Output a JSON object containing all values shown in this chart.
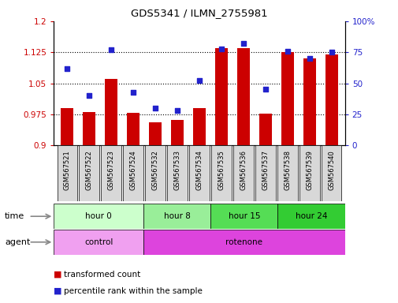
{
  "title": "GDS5341 / ILMN_2755981",
  "samples": [
    "GSM567521",
    "GSM567522",
    "GSM567523",
    "GSM567524",
    "GSM567532",
    "GSM567533",
    "GSM567534",
    "GSM567535",
    "GSM567536",
    "GSM567537",
    "GSM567538",
    "GSM567539",
    "GSM567540"
  ],
  "transformed_count": [
    0.99,
    0.98,
    1.06,
    0.978,
    0.955,
    0.962,
    0.99,
    1.135,
    1.135,
    0.977,
    1.126,
    1.11,
    1.12
  ],
  "percentile_rank": [
    62,
    40,
    77,
    43,
    30,
    28,
    52,
    78,
    82,
    45,
    76,
    70,
    75
  ],
  "ylim_left": [
    0.9,
    1.2
  ],
  "ylim_right": [
    0,
    100
  ],
  "yticks_left": [
    0.9,
    0.975,
    1.05,
    1.125,
    1.2
  ],
  "yticks_right": [
    0,
    25,
    50,
    75,
    100
  ],
  "ytick_labels_left": [
    "0.9",
    "0.975",
    "1.05",
    "1.125",
    "1.2"
  ],
  "ytick_labels_right": [
    "0",
    "25",
    "50",
    "75",
    "100%"
  ],
  "hlines": [
    0.975,
    1.05,
    1.125
  ],
  "bar_color": "#cc0000",
  "dot_color": "#2222cc",
  "time_groups": [
    {
      "label": "hour 0",
      "start": 0,
      "end": 4,
      "color": "#ccffcc"
    },
    {
      "label": "hour 8",
      "start": 4,
      "end": 7,
      "color": "#99ee99"
    },
    {
      "label": "hour 15",
      "start": 7,
      "end": 10,
      "color": "#55dd55"
    },
    {
      "label": "hour 24",
      "start": 10,
      "end": 13,
      "color": "#33cc33"
    }
  ],
  "agent_groups": [
    {
      "label": "control",
      "start": 0,
      "end": 4,
      "color": "#f0a0f0"
    },
    {
      "label": "rotenone",
      "start": 4,
      "end": 13,
      "color": "#dd44dd"
    }
  ],
  "legend_bar_label": "transformed count",
  "legend_dot_label": "percentile rank within the sample",
  "time_label": "time",
  "agent_label": "agent",
  "bg_color": "#ffffff",
  "plot_bg_color": "#ffffff",
  "tick_color_left": "#cc0000",
  "tick_color_right": "#2222cc",
  "sample_box_color": "#d8d8d8",
  "arrow_color": "#888888"
}
